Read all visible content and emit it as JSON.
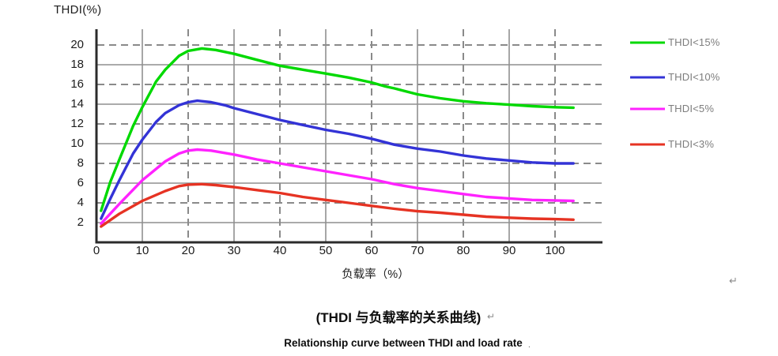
{
  "title": "THDI(%)",
  "captions": {
    "cn": "(THDI 与负载率的关系曲线)",
    "cn_mark": "↵",
    "en": "Relationship curve between THDI and load rate",
    "en_mark": ".",
    "floating_mark": "↵"
  },
  "colors": {
    "grid_solid": "#8f8f8f",
    "grid_dashed": "#8a8a8a",
    "axis": "#2b2b2b",
    "legend_text": "#7d7d7d",
    "background": "#ffffff"
  },
  "chart_data": {
    "type": "line",
    "title": "THDI(%)",
    "xlabel": "负载率（%）",
    "ylabel": "THDI(%)",
    "xlim": [
      0,
      110
    ],
    "ylim": [
      0,
      21.5
    ],
    "xticks": [
      0,
      10,
      20,
      30,
      40,
      50,
      60,
      70,
      80,
      90,
      100
    ],
    "yticks": [
      2,
      4,
      6,
      8,
      10,
      12,
      14,
      16,
      18,
      20
    ],
    "grid": {
      "h_solid": [
        2,
        6,
        10,
        14,
        18
      ],
      "h_dashed": [
        4,
        8,
        12,
        16,
        20
      ],
      "v_solid": [
        10,
        30,
        50,
        70,
        90
      ],
      "v_dashed": [
        20,
        40,
        60,
        80,
        100
      ]
    },
    "legend_position": "right",
    "series": [
      {
        "name": "THDI<15%",
        "color": "#00d900",
        "points": [
          [
            1,
            3.2
          ],
          [
            3,
            6.1
          ],
          [
            5,
            8.4
          ],
          [
            8,
            11.8
          ],
          [
            10,
            13.7
          ],
          [
            13,
            16.3
          ],
          [
            15,
            17.5
          ],
          [
            18,
            18.9
          ],
          [
            20,
            19.4
          ],
          [
            23,
            19.65
          ],
          [
            26,
            19.5
          ],
          [
            30,
            19.1
          ],
          [
            35,
            18.5
          ],
          [
            40,
            17.9
          ],
          [
            45,
            17.5
          ],
          [
            50,
            17.1
          ],
          [
            55,
            16.7
          ],
          [
            60,
            16.2
          ],
          [
            63,
            15.8
          ],
          [
            65,
            15.6
          ],
          [
            70,
            15.0
          ],
          [
            75,
            14.6
          ],
          [
            80,
            14.3
          ],
          [
            85,
            14.1
          ],
          [
            90,
            13.95
          ],
          [
            95,
            13.8
          ],
          [
            100,
            13.7
          ],
          [
            104,
            13.65
          ]
        ]
      },
      {
        "name": "THDI<10%",
        "color": "#3333d6",
        "points": [
          [
            1,
            2.4
          ],
          [
            3,
            4.4
          ],
          [
            5,
            6.3
          ],
          [
            8,
            9.0
          ],
          [
            10,
            10.4
          ],
          [
            13,
            12.2
          ],
          [
            15,
            13.1
          ],
          [
            18,
            13.9
          ],
          [
            20,
            14.2
          ],
          [
            22,
            14.35
          ],
          [
            25,
            14.2
          ],
          [
            28,
            13.9
          ],
          [
            30,
            13.6
          ],
          [
            35,
            13.0
          ],
          [
            40,
            12.4
          ],
          [
            45,
            11.9
          ],
          [
            50,
            11.4
          ],
          [
            55,
            11.0
          ],
          [
            60,
            10.5
          ],
          [
            65,
            9.9
          ],
          [
            70,
            9.5
          ],
          [
            75,
            9.2
          ],
          [
            80,
            8.8
          ],
          [
            85,
            8.5
          ],
          [
            90,
            8.3
          ],
          [
            95,
            8.1
          ],
          [
            100,
            8.0
          ],
          [
            104,
            8.0
          ]
        ]
      },
      {
        "name": "THDI<5%",
        "color": "#ff22ff",
        "points": [
          [
            1,
            1.9
          ],
          [
            5,
            3.9
          ],
          [
            10,
            6.3
          ],
          [
            15,
            8.2
          ],
          [
            18,
            9.0
          ],
          [
            20,
            9.3
          ],
          [
            22,
            9.4
          ],
          [
            25,
            9.3
          ],
          [
            30,
            8.9
          ],
          [
            35,
            8.4
          ],
          [
            40,
            8.0
          ],
          [
            45,
            7.6
          ],
          [
            50,
            7.2
          ],
          [
            55,
            6.8
          ],
          [
            60,
            6.4
          ],
          [
            65,
            5.9
          ],
          [
            70,
            5.5
          ],
          [
            75,
            5.2
          ],
          [
            80,
            4.9
          ],
          [
            85,
            4.6
          ],
          [
            90,
            4.45
          ],
          [
            95,
            4.3
          ],
          [
            100,
            4.25
          ],
          [
            104,
            4.2
          ]
        ]
      },
      {
        "name": "THDI<3%",
        "color": "#e63323",
        "points": [
          [
            1,
            1.6
          ],
          [
            5,
            2.9
          ],
          [
            10,
            4.2
          ],
          [
            15,
            5.2
          ],
          [
            18,
            5.7
          ],
          [
            20,
            5.85
          ],
          [
            23,
            5.9
          ],
          [
            26,
            5.8
          ],
          [
            30,
            5.6
          ],
          [
            35,
            5.3
          ],
          [
            40,
            5.0
          ],
          [
            45,
            4.6
          ],
          [
            50,
            4.3
          ],
          [
            55,
            4.0
          ],
          [
            60,
            3.7
          ],
          [
            65,
            3.4
          ],
          [
            70,
            3.15
          ],
          [
            75,
            3.0
          ],
          [
            80,
            2.8
          ],
          [
            85,
            2.6
          ],
          [
            90,
            2.5
          ],
          [
            95,
            2.4
          ],
          [
            100,
            2.35
          ],
          [
            104,
            2.3
          ]
        ]
      }
    ]
  }
}
